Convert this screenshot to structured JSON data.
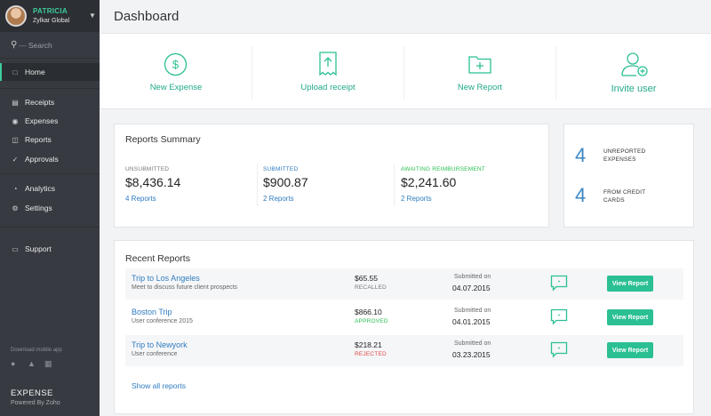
{
  "sidebar": {
    "profile": {
      "name": "PATRICIA",
      "org": "Zylkar Global"
    },
    "search_placeholder": "Search",
    "items": [
      {
        "label": "Home"
      },
      {
        "label": "Receipts"
      },
      {
        "label": "Expenses"
      },
      {
        "label": "Reports"
      },
      {
        "label": "Approvals"
      },
      {
        "label": "Analytics"
      },
      {
        "label": "Settings"
      },
      {
        "label": "Support"
      }
    ],
    "download_text": "Download mobile app",
    "brand": "EXPENSE",
    "powered": "Powered By Zoho"
  },
  "header": {
    "title": "Dashboard"
  },
  "actions": [
    {
      "label": "New Expense",
      "icon": "dollar-circle-icon"
    },
    {
      "label": "Upload receipt",
      "icon": "upload-receipt-icon"
    },
    {
      "label": "New Report",
      "icon": "new-folder-icon"
    },
    {
      "label": "Invite user",
      "icon": "add-user-icon"
    }
  ],
  "summary": {
    "title": "Reports Summary",
    "columns": [
      {
        "label": "UNSUBMITTED",
        "amount": "$8,436.14",
        "link": "4 Reports",
        "color": "#777777"
      },
      {
        "label": "SUBMITTED",
        "amount": "$900.87",
        "link": "2 Reports",
        "color": "#2f7cc0"
      },
      {
        "label": "AWAITING REIMBURSEMENT",
        "amount": "$2,241.60",
        "link": "2 Reports",
        "color": "#2bbf50"
      }
    ]
  },
  "unreported": {
    "items": [
      {
        "count": "4",
        "line1": "UNREPORTED",
        "line2": "EXPENSES"
      },
      {
        "count": "4",
        "line1": "FROM CREDIT",
        "line2": "CARDS"
      }
    ]
  },
  "recent": {
    "title": "Recent Reports",
    "submitted_label": "Submitted on",
    "button_label": "View Report",
    "show_all": "Show all reports",
    "rows": [
      {
        "name": "Trip to Los Angeles",
        "desc": "Meet to discuss future client prospects",
        "amount": "$65.55",
        "status": "RECALLED",
        "status_color": "#777777",
        "date": "04.07.2015"
      },
      {
        "name": "Boston Trip",
        "desc": "User conference 2015",
        "amount": "$866.10",
        "status": "APPROVED",
        "status_color": "#2bbf50",
        "date": "04.01.2015"
      },
      {
        "name": "Trip to Newyork",
        "desc": "User conference",
        "amount": "$218.21",
        "status": "REJECTED",
        "status_color": "#e04848",
        "date": "03.23.2015"
      }
    ]
  },
  "colors": {
    "accent": "#2bbf94",
    "link": "#2f7cc0",
    "sidebar": "#373b41"
  }
}
